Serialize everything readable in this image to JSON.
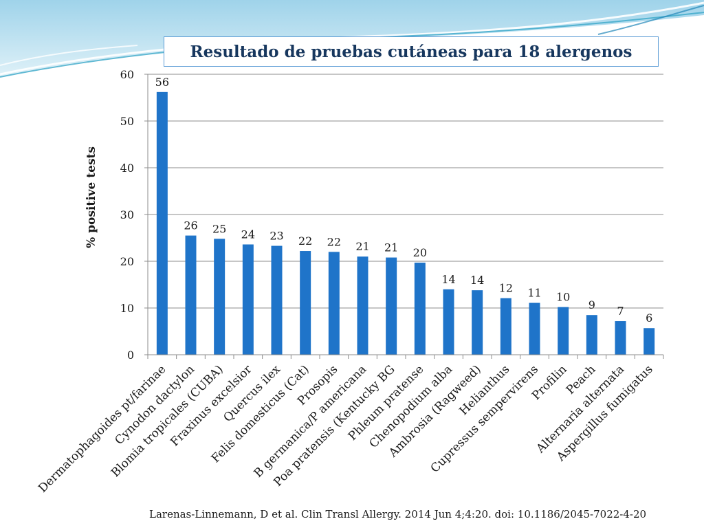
{
  "slide": {
    "title": "Resultado de pruebas cutáneas para 18 alergenos",
    "citation": "Larenas-Linnemann, D et al. Clin Transl Allergy. 2014 Jun 4;4:20. doi: 10.1186/2045-7022-4-20"
  },
  "colors": {
    "bar": "#1f74c9",
    "title": "#17375e",
    "accent": "#5b9bd5"
  },
  "chart_data": {
    "type": "bar",
    "title": "Resultado de pruebas cutáneas para 18 alergenos",
    "xlabel": "",
    "ylabel": "% positive tests",
    "ylim": [
      0,
      60
    ],
    "yticks": [
      0,
      10,
      20,
      30,
      40,
      50,
      60
    ],
    "grid": true,
    "legend": "none",
    "categories": [
      "Dermatophagoides pt/farinae",
      "Cynodon dactylon",
      "Blomia tropicales (CUBA)",
      "Fraxinus excelsior",
      "Quercus ilex",
      "Felis domesticus (Cat)",
      "Prosopis",
      "B germanica/P americana",
      "Poa pratensis (Kentucky BG",
      "Phleum pratense",
      "Chenopodium alba",
      "Ambrosia (Ragweed)",
      "Helianthus",
      "Cupressus sempervirens",
      "Profilin",
      "Peach",
      "Alternaria alternata",
      "Aspergillus fumigatus"
    ],
    "values": [
      56.2,
      25.5,
      24.8,
      23.6,
      23.3,
      22.2,
      22.0,
      21.0,
      20.8,
      19.7,
      14.0,
      13.8,
      12.1,
      11.1,
      10.2,
      8.5,
      7.2,
      5.7
    ],
    "labels": [
      "56",
      "26",
      "25",
      "24",
      "23",
      "22",
      "22",
      "21",
      "21",
      "20",
      "14",
      "14",
      "12",
      "11",
      "10",
      "9",
      "7",
      "6"
    ]
  }
}
